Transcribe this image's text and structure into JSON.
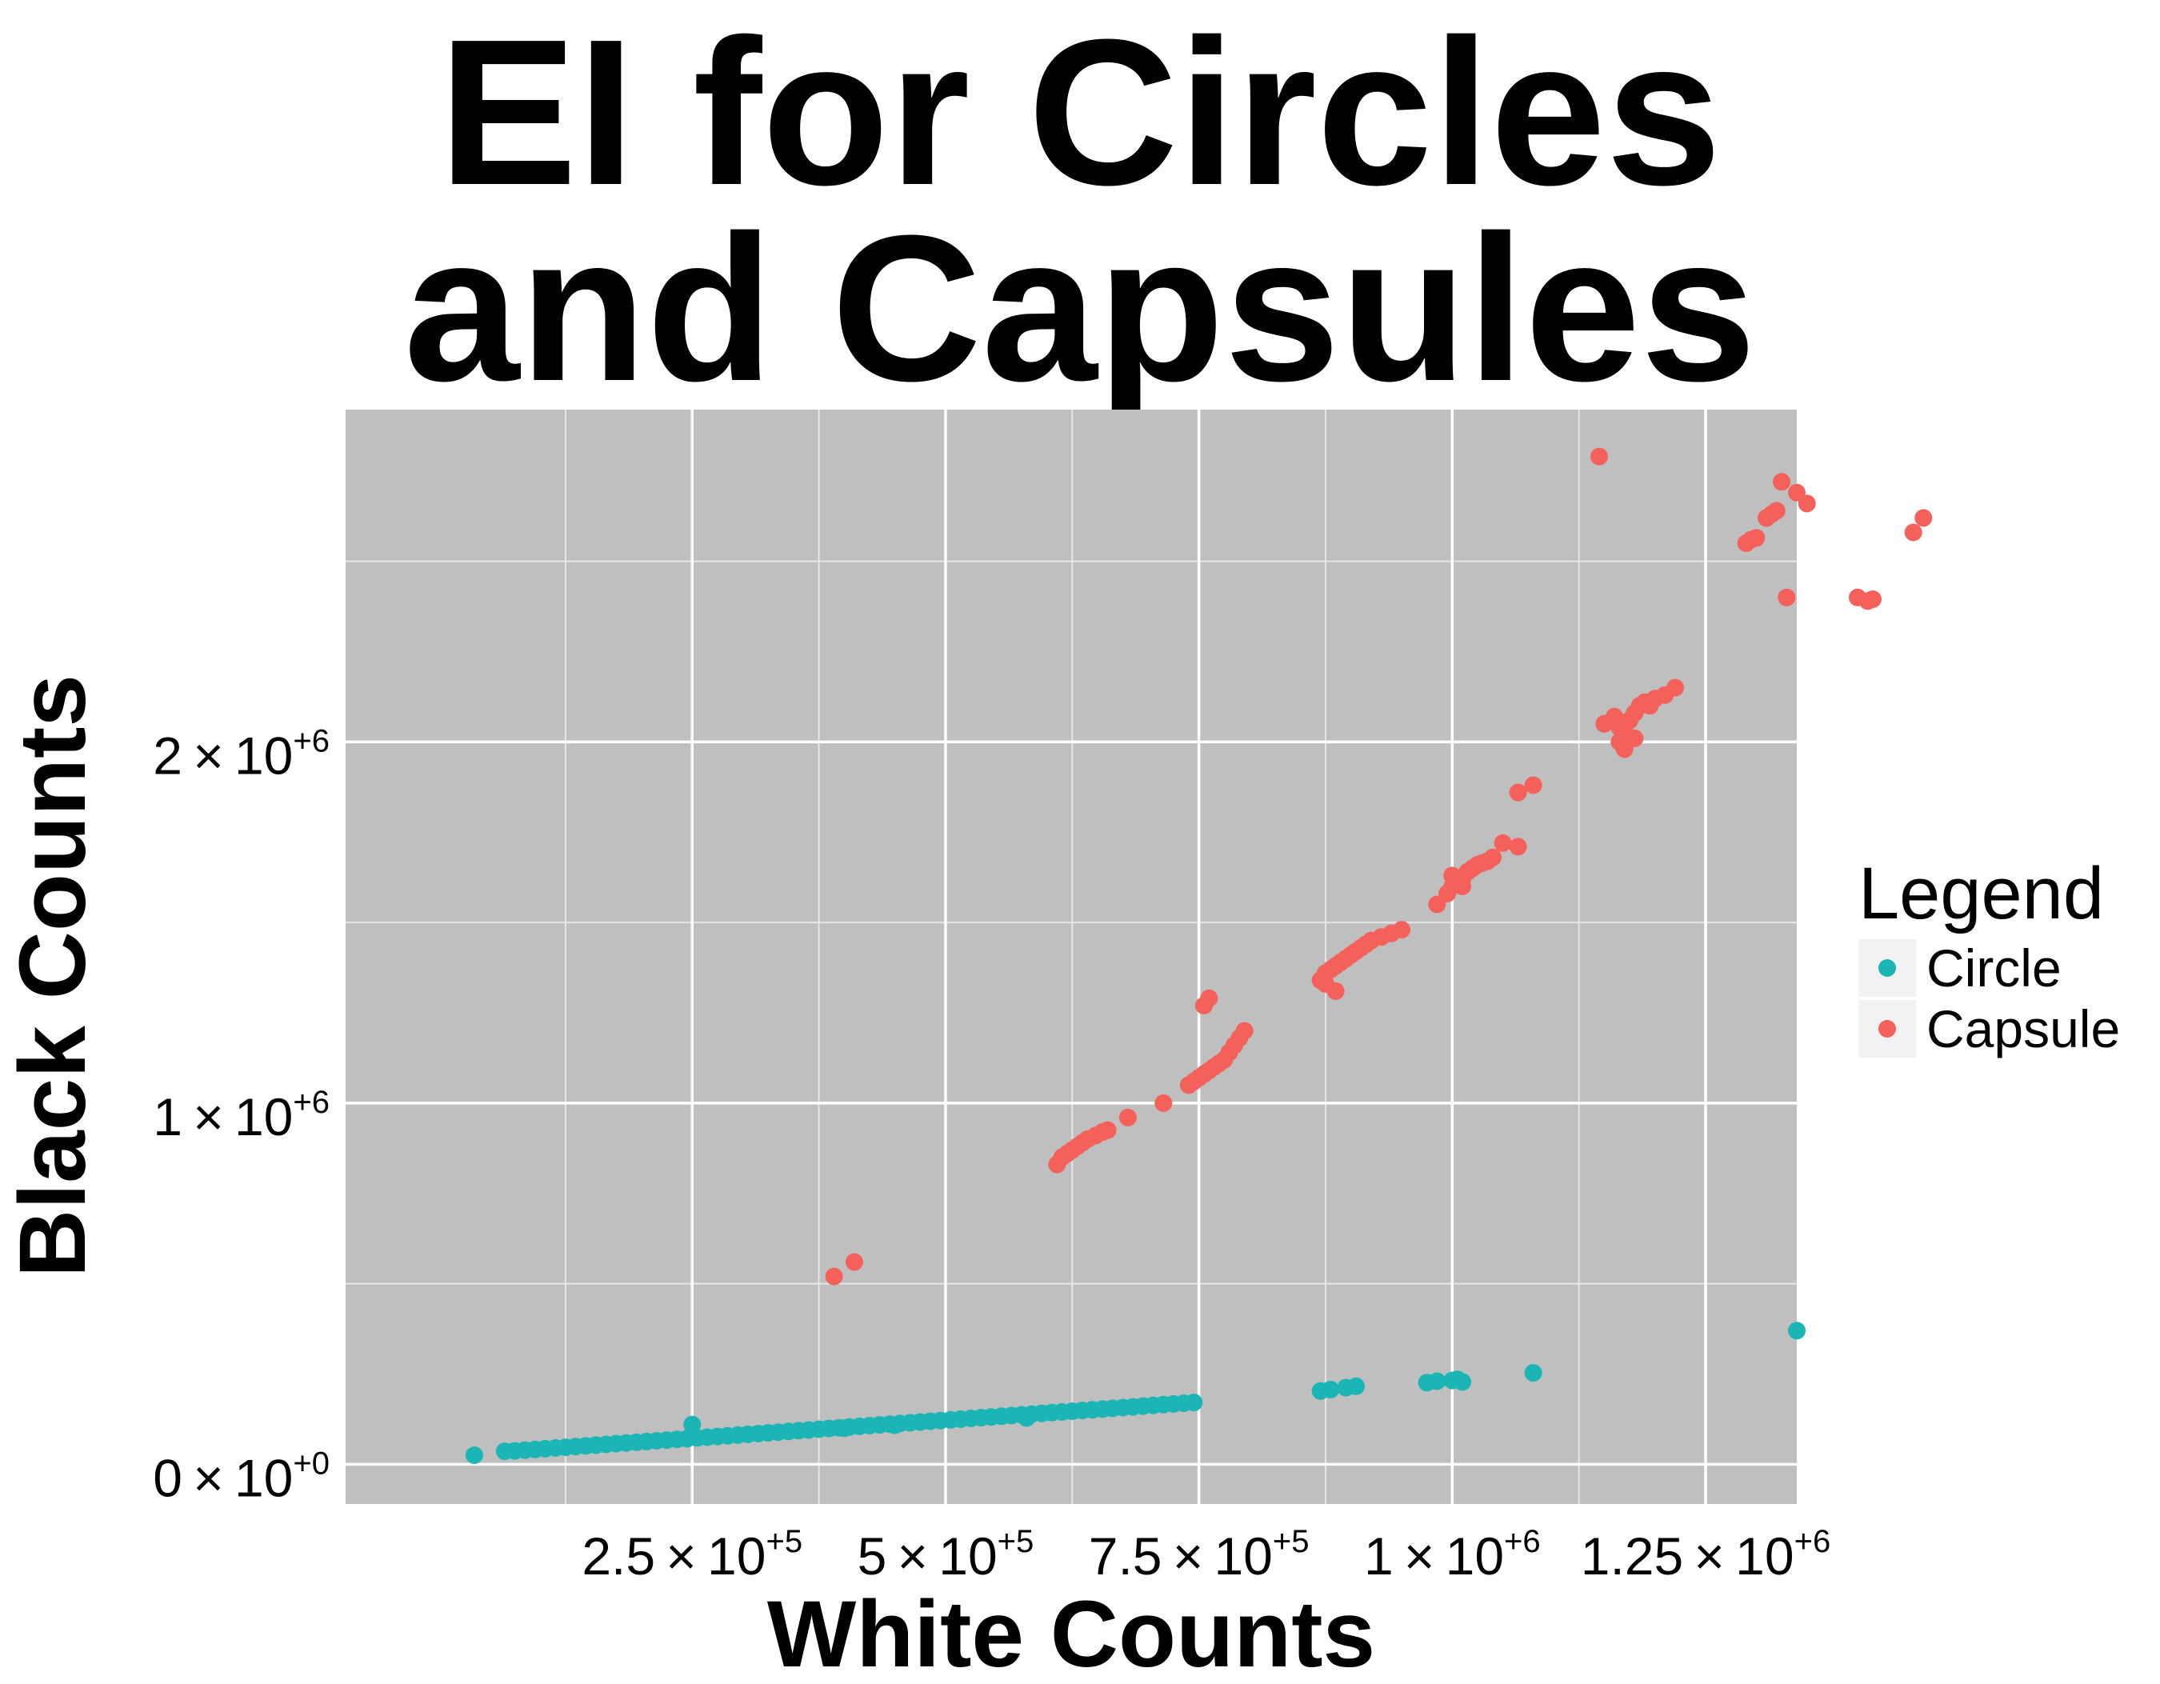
{
  "chart_data": {
    "type": "scatter",
    "title_lines": [
      "EI for Circles",
      "and Capsules"
    ],
    "xlabel": "White Counts",
    "ylabel": "Black Counts",
    "xlim": [
      -92000,
      1340000
    ],
    "ylim": [
      -110000,
      2920000
    ],
    "x_ticks": [
      {
        "value": 250000,
        "mantissa": "2.5",
        "exponent": "+5"
      },
      {
        "value": 500000,
        "mantissa": "5",
        "exponent": "+5"
      },
      {
        "value": 750000,
        "mantissa": "7.5",
        "exponent": "+5"
      },
      {
        "value": 1000000,
        "mantissa": "1",
        "exponent": "+6"
      },
      {
        "value": 1250000,
        "mantissa": "1.25",
        "exponent": "+6"
      }
    ],
    "y_ticks": [
      {
        "value": 0,
        "mantissa": "0",
        "exponent": "+0"
      },
      {
        "value": 1000000,
        "mantissa": "1",
        "exponent": "+6"
      },
      {
        "value": 2000000,
        "mantissa": "2",
        "exponent": "+6"
      }
    ],
    "x_minor_gridlines": [
      125000,
      375000,
      625000,
      875000,
      1125000
    ],
    "y_minor_gridlines": [
      500000,
      1500000,
      2500000
    ],
    "grid": true,
    "legend": {
      "title": "Legend",
      "placement": "right"
    },
    "series": [
      {
        "name": "Circle",
        "color": "#1cb5b5",
        "points": [
          [
            35000,
            25000
          ],
          [
            65000,
            36000
          ],
          [
            75000,
            37000
          ],
          [
            85000,
            39000
          ],
          [
            95000,
            41000
          ],
          [
            105000,
            43000
          ],
          [
            115000,
            45000
          ],
          [
            125000,
            47000
          ],
          [
            135000,
            49000
          ],
          [
            145000,
            51000
          ],
          [
            155000,
            53000
          ],
          [
            165000,
            55000
          ],
          [
            175000,
            57000
          ],
          [
            185000,
            59000
          ],
          [
            195000,
            61000
          ],
          [
            205000,
            63000
          ],
          [
            215000,
            65000
          ],
          [
            225000,
            67000
          ],
          [
            235000,
            69000
          ],
          [
            245000,
            71000
          ],
          [
            255000,
            73000
          ],
          [
            265000,
            75000
          ],
          [
            275000,
            77000
          ],
          [
            285000,
            79000
          ],
          [
            295000,
            81000
          ],
          [
            305000,
            83000
          ],
          [
            315000,
            85000
          ],
          [
            325000,
            87000
          ],
          [
            335000,
            89000
          ],
          [
            345000,
            91000
          ],
          [
            355000,
            93000
          ],
          [
            365000,
            95000
          ],
          [
            375000,
            97000
          ],
          [
            385000,
            99000
          ],
          [
            395000,
            101000
          ],
          [
            405000,
            103000
          ],
          [
            415000,
            105000
          ],
          [
            425000,
            107000
          ],
          [
            435000,
            109000
          ],
          [
            445000,
            111000
          ],
          [
            455000,
            113000
          ],
          [
            465000,
            115000
          ],
          [
            475000,
            117000
          ],
          [
            485000,
            119000
          ],
          [
            495000,
            121000
          ],
          [
            505000,
            123000
          ],
          [
            515000,
            125000
          ],
          [
            525000,
            127000
          ],
          [
            535000,
            129000
          ],
          [
            545000,
            131000
          ],
          [
            555000,
            133000
          ],
          [
            565000,
            135000
          ],
          [
            575000,
            137000
          ],
          [
            585000,
            139000
          ],
          [
            595000,
            141000
          ],
          [
            605000,
            143000
          ],
          [
            615000,
            145000
          ],
          [
            625000,
            147000
          ],
          [
            635000,
            149000
          ],
          [
            645000,
            151000
          ],
          [
            655000,
            153000
          ],
          [
            665000,
            155000
          ],
          [
            675000,
            157000
          ],
          [
            685000,
            159000
          ],
          [
            695000,
            161000
          ],
          [
            705000,
            163000
          ],
          [
            715000,
            165000
          ],
          [
            725000,
            167000
          ],
          [
            735000,
            169000
          ],
          [
            745000,
            171000
          ],
          [
            250000,
            110000
          ],
          [
            400000,
            100000
          ],
          [
            450000,
            108000
          ],
          [
            580000,
            128000
          ],
          [
            870000,
            203000
          ],
          [
            880000,
            207000
          ],
          [
            895000,
            212000
          ],
          [
            905000,
            216000
          ],
          [
            975000,
            226000
          ],
          [
            985000,
            230000
          ],
          [
            1000000,
            232000
          ],
          [
            1005000,
            235000
          ],
          [
            1010000,
            228000
          ],
          [
            1080000,
            253000
          ],
          [
            1340000,
            370000
          ]
        ]
      },
      {
        "name": "Capsule",
        "color": "#f4605a",
        "points": [
          [
            390000,
            520000
          ],
          [
            410000,
            560000
          ],
          [
            610000,
            830000
          ],
          [
            615000,
            850000
          ],
          [
            620000,
            860000
          ],
          [
            625000,
            870000
          ],
          [
            630000,
            880000
          ],
          [
            635000,
            890000
          ],
          [
            640000,
            900000
          ],
          [
            648000,
            910000
          ],
          [
            655000,
            920000
          ],
          [
            660000,
            925000
          ],
          [
            680000,
            960000
          ],
          [
            715000,
            1000000
          ],
          [
            740000,
            1050000
          ],
          [
            745000,
            1060000
          ],
          [
            750000,
            1070000
          ],
          [
            755000,
            1080000
          ],
          [
            760000,
            1090000
          ],
          [
            765000,
            1100000
          ],
          [
            770000,
            1110000
          ],
          [
            775000,
            1120000
          ],
          [
            780000,
            1140000
          ],
          [
            785000,
            1160000
          ],
          [
            790000,
            1180000
          ],
          [
            795000,
            1200000
          ],
          [
            755000,
            1270000
          ],
          [
            760000,
            1290000
          ],
          [
            870000,
            1340000
          ],
          [
            875000,
            1360000
          ],
          [
            880000,
            1370000
          ],
          [
            885000,
            1380000
          ],
          [
            890000,
            1390000
          ],
          [
            895000,
            1400000
          ],
          [
            900000,
            1410000
          ],
          [
            905000,
            1420000
          ],
          [
            910000,
            1430000
          ],
          [
            915000,
            1440000
          ],
          [
            920000,
            1450000
          ],
          [
            930000,
            1460000
          ],
          [
            940000,
            1470000
          ],
          [
            950000,
            1480000
          ],
          [
            885000,
            1310000
          ],
          [
            875000,
            1330000
          ],
          [
            985000,
            1550000
          ],
          [
            995000,
            1580000
          ],
          [
            1000000,
            1600000
          ],
          [
            1010000,
            1620000
          ],
          [
            1015000,
            1640000
          ],
          [
            1020000,
            1650000
          ],
          [
            1025000,
            1660000
          ],
          [
            1030000,
            1665000
          ],
          [
            1035000,
            1670000
          ],
          [
            1040000,
            1680000
          ],
          [
            1000000,
            1630000
          ],
          [
            1010000,
            1600000
          ],
          [
            1050000,
            1720000
          ],
          [
            1065000,
            1710000
          ],
          [
            1065000,
            1860000
          ],
          [
            1080000,
            1880000
          ],
          [
            1150000,
            2050000
          ],
          [
            1160000,
            2070000
          ],
          [
            1165000,
            2000000
          ],
          [
            1170000,
            2040000
          ],
          [
            1175000,
            2060000
          ],
          [
            1180000,
            2080000
          ],
          [
            1185000,
            2100000
          ],
          [
            1190000,
            2110000
          ],
          [
            1195000,
            2100000
          ],
          [
            1200000,
            2120000
          ],
          [
            1210000,
            2130000
          ],
          [
            1220000,
            2150000
          ],
          [
            1165000,
            2040000
          ],
          [
            1170000,
            1980000
          ],
          [
            1180000,
            2010000
          ],
          [
            1290000,
            2550000
          ],
          [
            1295000,
            2560000
          ],
          [
            1300000,
            2565000
          ],
          [
            1310000,
            2620000
          ],
          [
            1315000,
            2630000
          ],
          [
            1320000,
            2640000
          ],
          [
            1325000,
            2720000
          ],
          [
            1340000,
            2690000
          ],
          [
            1350000,
            2660000
          ],
          [
            1330000,
            2400000
          ],
          [
            1400000,
            2400000
          ],
          [
            1410000,
            2390000
          ],
          [
            1415000,
            2395000
          ],
          [
            1455000,
            2580000
          ],
          [
            1465000,
            2620000
          ],
          [
            1145000,
            2790000
          ]
        ]
      }
    ]
  }
}
